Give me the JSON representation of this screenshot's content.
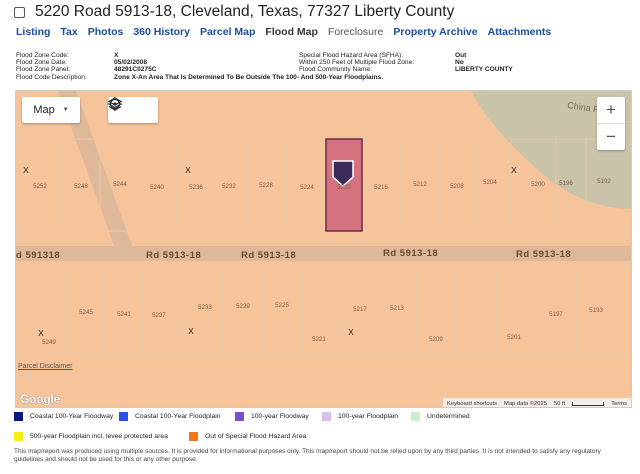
{
  "header": {
    "title": "5220 Road 5913-18, Cleveland, Texas, 77327 Liberty County"
  },
  "tabs": [
    {
      "label": "Listing",
      "state": "link"
    },
    {
      "label": "Tax",
      "state": "link"
    },
    {
      "label": "Photos",
      "state": "link"
    },
    {
      "label": "360 History",
      "state": "link"
    },
    {
      "label": "Parcel Map",
      "state": "link"
    },
    {
      "label": "Flood Map",
      "state": "active"
    },
    {
      "label": "Foreclosure",
      "state": "inactive"
    },
    {
      "label": "Property Archive",
      "state": "link"
    },
    {
      "label": "Attachments",
      "state": "link"
    }
  ],
  "flood_info": {
    "zone_code_label": "Flood Zone Code:",
    "zone_code": "X",
    "zone_date_label": "Flood Zone Date:",
    "zone_date": "05/02/2008",
    "zone_panel_label": "Flood Zone Panel:",
    "zone_panel": "48291C0275C",
    "zone_desc_label": "Flood Code Description:",
    "zone_desc": "Zone X-An Area That Is Determined To Be Outside The 100- And 500-Year Floodplains.",
    "sfha_label": "Special Flood Hazard Area (SFHA):",
    "sfha": "Out",
    "within250_label": "Within 250 Feet of Multiple Flood Zone:",
    "within250": "No",
    "community_label": "Flood Community Name:",
    "community": "LIBERTY COUNTY"
  },
  "map": {
    "type_button": "Map",
    "road_label": "Rd 5913-18",
    "road_label_left": "d 591318",
    "china_label": "China P",
    "parcel_disclaimer": "Parcel Disclaimer",
    "google": "Google",
    "attribution": {
      "shortcuts": "Keyboard shortcuts",
      "map_data": "Map data ©2025",
      "scale": "50 ft",
      "terms": "Terms"
    },
    "zone_markers": [
      "X",
      "X",
      "X",
      "X",
      "X",
      "X"
    ],
    "top_lots": [
      "5252",
      "5248",
      "5244",
      "5240",
      "5236",
      "5232",
      "5228",
      "5224",
      "5220",
      "5216",
      "5212",
      "5208",
      "5204",
      "5200",
      "5196",
      "5192"
    ],
    "bottom_lots": [
      "5249",
      "5245",
      "5241",
      "5237",
      "5233",
      "5229",
      "5225",
      "5221",
      "5217",
      "5213",
      "5209",
      "5201",
      "5197",
      "5193"
    ],
    "colors": {
      "zone_x": "#f6c49a",
      "road": "#ddb899",
      "green": "#c9c3aa",
      "subject": "#d4727f",
      "subject_border": "#6a2a4e",
      "pin": "#3b2a5a"
    },
    "icons": {
      "layers": "layers-icon",
      "locate": "locate-icon",
      "zoom_in": "zoom-in-icon",
      "zoom_out": "zoom-out-icon"
    }
  },
  "legend": [
    {
      "label": "Coastal 100-Year Floodway",
      "color": "#0a1a7a"
    },
    {
      "label": "Coastal 100-Year Floodplain",
      "color": "#2a52e0"
    },
    {
      "label": "100-year Floodway",
      "color": "#7b4fc9"
    },
    {
      "label": "100-year Floodplain",
      "color": "#d7c0ee"
    },
    {
      "label": "Undetermined",
      "color": "#cdeecb"
    },
    {
      "label": "500-year Floodplain incl. levee protected area",
      "color": "#f5f011"
    },
    {
      "label": "Out of Special Flood Hazard Area",
      "color": "#f07a1b"
    }
  ],
  "footnote": "This map/report was produced using multiple sources. It is provided for informational purposes only. This map/report should not be relied upon by any third parties. It is not intended to satisfy any regulatory guidelines and should not be used for this or any other purpose."
}
